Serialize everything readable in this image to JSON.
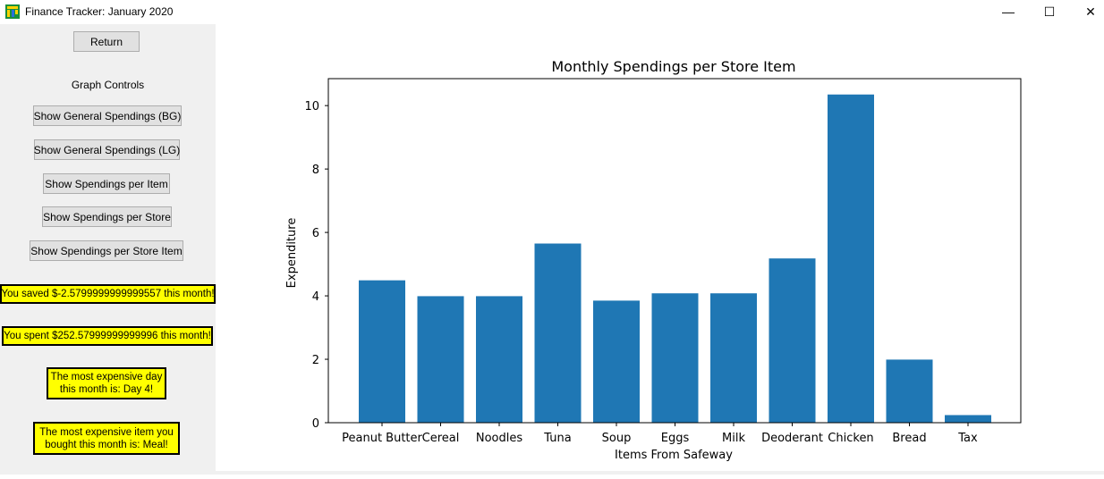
{
  "window": {
    "title": "Finance Tracker: January 2020",
    "minimize_glyph": "—",
    "maximize_glyph": "☐",
    "close_glyph": "✕"
  },
  "sidebar": {
    "return_label": "Return",
    "graph_controls_label": "Graph Controls",
    "buttons": [
      "Show General Spendings (BG)",
      "Show General Spendings (LG)",
      "Show Spendings per Item",
      "Show Spendings per Store",
      "Show Spendings per Store Item"
    ],
    "saved_text": "You saved $-2.5799999999999557 this month!",
    "spent_text": "You spent $252.57999999999996 this month!",
    "expensive_day_line1": "The most expensive day",
    "expensive_day_line2": "this month is: Day 4!",
    "expensive_item_line1": "The most expensive item you",
    "expensive_item_line2": "bought this month is: Meal!"
  },
  "colors": {
    "bar": "#1f77b4",
    "highlight": "#ffff00"
  },
  "chart_data": {
    "type": "bar",
    "title": "Monthly Spendings per Store Item",
    "xlabel": "Items From Safeway",
    "ylabel": "Expenditure",
    "categories": [
      "Peanut Butter",
      "Cereal",
      "Noodles",
      "Tuna",
      "Soup",
      "Eggs",
      "Milk",
      "Deoderant",
      "Chicken",
      "Bread",
      "Tax"
    ],
    "values": [
      4.49,
      3.99,
      3.99,
      5.65,
      3.85,
      4.08,
      4.08,
      5.18,
      10.35,
      1.99,
      0.24
    ],
    "ylim": [
      0,
      10.85
    ],
    "yticks": [
      0,
      2,
      4,
      6,
      8,
      10
    ],
    "grid": false
  }
}
